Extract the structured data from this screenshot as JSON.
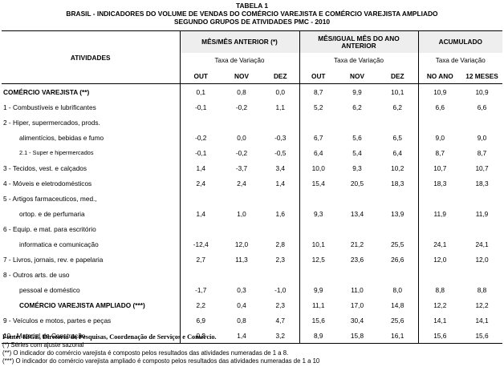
{
  "title": {
    "line1": "TABELA 1",
    "line2": "BRASIL - INDICADORES DO VOLUME DE VENDAS DO COMÉRCIO VAREJISTA E COMÉRCIO VAREJISTA AMPLIADO",
    "line3": "SEGUNDO GRUPOS DE ATIVIDADES PMC - 2010"
  },
  "header": {
    "activities": "ATIVIDADES",
    "groups": [
      "MÊS/MÊS ANTERIOR (*)",
      "MÊS/IGUAL MÊS DO ANO ANTERIOR",
      "ACUMULADO"
    ],
    "subheader": "Taxa de Variação",
    "columns": [
      "OUT",
      "NOV",
      "DEZ",
      "OUT",
      "NOV",
      "DEZ",
      "NO ANO",
      "12 MESES"
    ]
  },
  "rows": [
    {
      "label": "COMÉRCIO VAREJISTA (**)",
      "values": [
        "0,1",
        "0,8",
        "0,0",
        "8,7",
        "9,9",
        "10,1",
        "10,9",
        "10,9"
      ]
    },
    {
      "label": "1 - Combustíveis e lubrificantes",
      "values": [
        "-0,1",
        "-0,2",
        "1,1",
        "5,2",
        "6,2",
        "6,2",
        "6,6",
        "6,6"
      ]
    },
    {
      "label": "2 - Hiper, supermercados, prods.",
      "label2": "alimentícios, bebidas e fumo",
      "values": [
        "-0,2",
        "0,0",
        "-0,3",
        "6,7",
        "5,6",
        "6,5",
        "9,0",
        "9,0"
      ]
    },
    {
      "label": "2.1 - Super e hipermercados",
      "values": [
        "-0,1",
        "-0,2",
        "-0,5",
        "6,4",
        "5,4",
        "6,4",
        "8,7",
        "8,7"
      ]
    },
    {
      "label": "3 - Tecidos, vest. e calçados",
      "values": [
        "1,4",
        "-3,7",
        "3,4",
        "10,0",
        "9,3",
        "10,2",
        "10,7",
        "10,7"
      ]
    },
    {
      "label": "4 - Móveis e eletrodomésticos",
      "values": [
        "2,4",
        "2,4",
        "1,4",
        "15,4",
        "20,5",
        "18,3",
        "18,3",
        "18,3"
      ]
    },
    {
      "label": "5 - Artigos farmaceuticos, med.,",
      "label2": "ortop. e de perfumaria",
      "values": [
        "1,4",
        "1,0",
        "1,6",
        "9,3",
        "13,4",
        "13,9",
        "11,9",
        "11,9"
      ]
    },
    {
      "label": "6 - Equip. e mat. para escritório",
      "label2": "informatica e comunicação",
      "values": [
        "-12,4",
        "12,0",
        "2,8",
        "10,1",
        "21,2",
        "25,5",
        "24,1",
        "24,1"
      ]
    },
    {
      "label": "7 - Livros, jornais, rev. e papelaria",
      "values": [
        "2,7",
        "11,3",
        "2,3",
        "12,5",
        "23,6",
        "26,6",
        "12,0",
        "12,0"
      ]
    },
    {
      "label": "8 - Outros arts. de uso",
      "label2": "pessoal e doméstico",
      "values": [
        "-1,7",
        "0,3",
        "-1,0",
        "9,9",
        "11,0",
        "8,0",
        "8,8",
        "8,8"
      ]
    },
    {
      "label": "COMÉRCIO VAREJISTA AMPLIADO (***)",
      "values": [
        "2,2",
        "0,4",
        "2,3",
        "11,1",
        "17,0",
        "14,8",
        "12,2",
        "12,2"
      ]
    },
    {
      "label": "9 - Veículos e motos, partes e peças",
      "values": [
        "6,9",
        "0,8",
        "4,7",
        "15,6",
        "30,4",
        "25,6",
        "14,1",
        "14,1"
      ]
    },
    {
      "label": "10 - Material de Construção",
      "values": [
        "0,3",
        "1,4",
        "3,2",
        "8,9",
        "15,8",
        "16,1",
        "15,6",
        "15,6"
      ]
    }
  ],
  "footer": {
    "source": "Fonte: IBGE, Diretoria de Pesquisas, Coordenação de Serviços e Comércio.",
    "note1": "(*) Séries com ajuste sazonal",
    "note2": "(**) O indicador do comércio varejista é composto pelos resultados das atividades numeradas de 1 a 8.",
    "note3": "(***) O indicador do comércio varejista ampliado é composto pelos resultados das atividades numeradas de 1 a 10"
  }
}
